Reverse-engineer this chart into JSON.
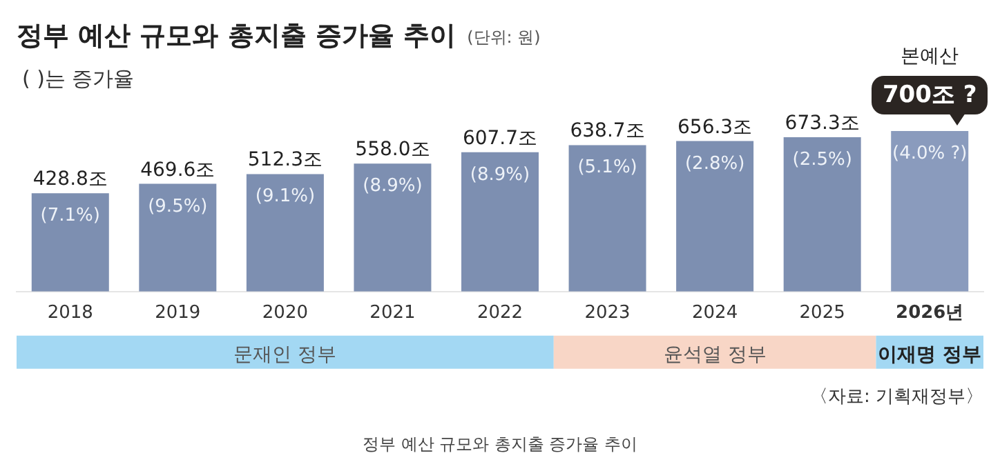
{
  "chart_data": {
    "type": "bar",
    "title": "정부 예산 규모와 총지출 증가율 추이",
    "subtitle": "( )는 증가율",
    "categories": [
      "2018",
      "2019",
      "2020",
      "2021",
      "2022",
      "2023",
      "2024",
      "2025",
      "2026년"
    ],
    "values": [
      428.8,
      469.6,
      512.3,
      558.0,
      607.7,
      638.7,
      656.3,
      673.3,
      700
    ],
    "colors": [
      "#7d8fb1",
      "#7d8fb1",
      "#7d8fb1",
      "#7d8fb1",
      "#7d8fb1",
      "#7d8fb1",
      "#7d8fb1",
      "#7d8fb1",
      "#8a9bbd"
    ],
    "value_labels": [
      "428.8조",
      "469.6조",
      "512.3조",
      "558.0조",
      "607.7조",
      "638.7조",
      "656.3조",
      "673.3조",
      "700조 ?"
    ],
    "tick_labels": "x",
    "grid": false,
    "legend": false,
    "annotations": [
      "(단위: 원)",
      "〈자료: 기획재정부〉",
      "정부 예산 규모와 총지출 증가율 추이",
      "본예산",
      "(7.1%)",
      "(9.5%)",
      "(9.1%)",
      "(8.9%)",
      "(8.9%)",
      "(5.1%)",
      "(2.8%)",
      "(2.5%)",
      "(4.0% ?)",
      "문재인 정부",
      "윤석열 정부",
      "이재명 정부"
    ]
  }
}
